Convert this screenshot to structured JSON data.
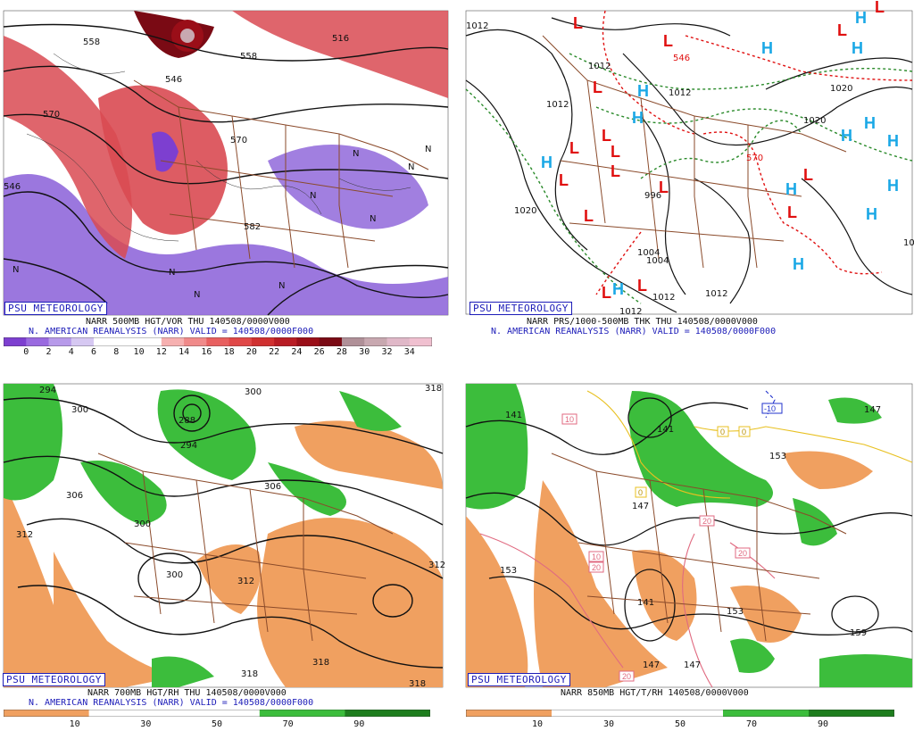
{
  "colors": {
    "vort_low": "#8a5fd8",
    "vort_high": "#d94a52",
    "vort_max": "#7a0a14",
    "rh_dry": "#f0a060",
    "rh_moist": "#3cbd3c",
    "states": "#8a4a2a",
    "low_red": "#e01010",
    "high_blue": "#1aa8e6",
    "thk_red": "#e01010",
    "thk_green": "#2a8a2a",
    "badge_blue": "#1c1cb8"
  },
  "panels": [
    {
      "id": "500mb",
      "badge": "PSU METEOROLOGY",
      "caption1": "NARR 500MB HGT/VOR THU 140508/0000V000",
      "caption2": "N. AMERICAN REANALYSIS (NARR) VALID = 140508/0000F000",
      "colorbar_colors": [
        "#7d3fd0",
        "#9a6ae0",
        "#b79aea",
        "#d6c8f2",
        "#ffffff",
        "#ffffff",
        "#ffffff",
        "#f6b0b0",
        "#f08a8a",
        "#e86060",
        "#e04848",
        "#d03030",
        "#b81c24",
        "#9a0e18",
        "#7a0a14",
        "#b09098",
        "#c8a8b0",
        "#e0b8c8",
        "#f0c0d0"
      ],
      "ticks": [
        "0",
        "2",
        "4",
        "6",
        "8",
        "10",
        "12",
        "14",
        "16",
        "18",
        "20",
        "22",
        "24",
        "26",
        "28",
        "30",
        "32",
        "34"
      ],
      "contour_labels": [
        "558",
        "570",
        "546",
        "558",
        "516",
        "570",
        "582",
        "546"
      ],
      "vort_labels": [
        "N",
        "N",
        "N",
        "N",
        "N",
        "N",
        "N",
        "N",
        "N"
      ]
    },
    {
      "id": "thickness",
      "badge": "PSU METEOROLOGY",
      "caption1": "NARR PRS/1000-500MB THK THU 140508/0000V000",
      "caption2": "N. AMERICAN REANALYSIS (NARR) VALID = 140508/0000F000",
      "pressure_labels": [
        "1012",
        "1012",
        "1012",
        "1012",
        "1020",
        "1020",
        "1020",
        "1004",
        "1004",
        "1012",
        "1012",
        "1012",
        "996",
        "10"
      ],
      "thickness_labels": [
        "570",
        "546"
      ],
      "lows": [
        "L",
        "L",
        "L",
        "L",
        "L",
        "L",
        "L",
        "L",
        "L",
        "L",
        "L",
        "L",
        "L",
        "L",
        "L",
        "L"
      ],
      "highs": [
        "H",
        "H",
        "H",
        "H",
        "H",
        "H",
        "H",
        "H",
        "H",
        "H",
        "H",
        "H",
        "H",
        "H"
      ]
    },
    {
      "id": "700mb",
      "badge": "PSU METEOROLOGY",
      "caption1": "NARR 700MB HGT/RH THU 140508/0000V000",
      "caption2": "N. AMERICAN REANALYSIS (NARR) VALID = 140508/0000F000",
      "colorbar_colors": [
        "#f0a060",
        "#ffffff",
        "#ffffff",
        "#3cbd3c",
        "#1e7e1e"
      ],
      "ticks": [
        "10",
        "30",
        "50",
        "70",
        "90"
      ],
      "contour_labels": [
        "294",
        "300",
        "288",
        "294",
        "300",
        "306",
        "300",
        "300",
        "306",
        "312",
        "312",
        "318",
        "318",
        "318",
        "312",
        "318"
      ]
    },
    {
      "id": "850mb",
      "badge": "PSU METEOROLOGY",
      "caption1": "NARR 850MB HGT/T/RH 140508/0000V000",
      "colorbar_colors": [
        "#f0a060",
        "#ffffff",
        "#ffffff",
        "#3cbd3c",
        "#1e7e1e"
      ],
      "ticks": [
        "10",
        "30",
        "50",
        "70",
        "90"
      ],
      "height_labels": [
        "141",
        "141",
        "147",
        "153",
        "147",
        "153",
        "141",
        "147",
        "153",
        "159",
        "147"
      ],
      "temp_labels": [
        "10",
        "0",
        "0",
        "0",
        "20",
        "10",
        "20",
        "20",
        "20",
        "-10"
      ]
    }
  ]
}
